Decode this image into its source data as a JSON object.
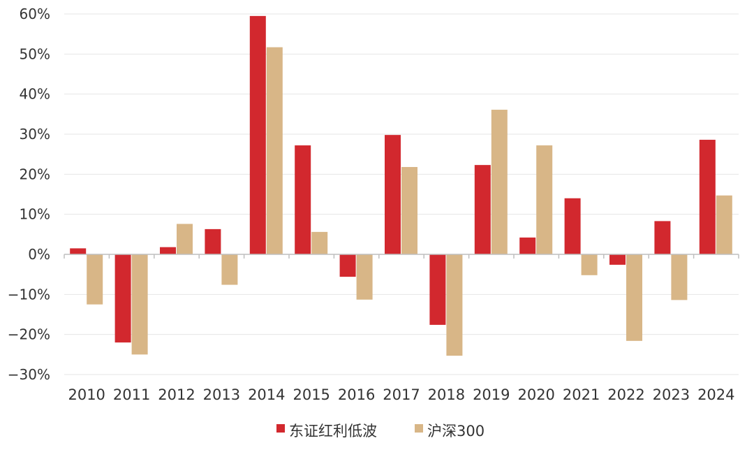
{
  "chart_data": {
    "type": "bar",
    "categories": [
      "2010",
      "2011",
      "2012",
      "2013",
      "2014",
      "2015",
      "2016",
      "2017",
      "2018",
      "2019",
      "2020",
      "2021",
      "2022",
      "2023",
      "2024"
    ],
    "series": [
      {
        "name": "东证红利低波",
        "color": "#D2282E",
        "values": [
          1.5,
          -22.0,
          1.8,
          6.3,
          59.5,
          27.2,
          -5.6,
          29.8,
          -17.6,
          22.3,
          4.2,
          14.0,
          -2.6,
          8.3,
          28.6
        ]
      },
      {
        "name": "沪深300",
        "color": "#D8B687",
        "values": [
          -12.5,
          -25.0,
          7.6,
          -7.6,
          51.7,
          5.6,
          -11.3,
          21.8,
          -25.3,
          36.1,
          27.2,
          -5.2,
          -21.6,
          -11.4,
          14.7
        ]
      }
    ],
    "yticks": [
      "60%",
      "50%",
      "40%",
      "30%",
      "20%",
      "10%",
      "0%",
      "−10%",
      "−20%",
      "−30%"
    ],
    "ylim": [
      -30,
      60
    ],
    "grid": true,
    "legend_position": "bottom-center",
    "title": "",
    "xlabel": "",
    "ylabel": ""
  }
}
